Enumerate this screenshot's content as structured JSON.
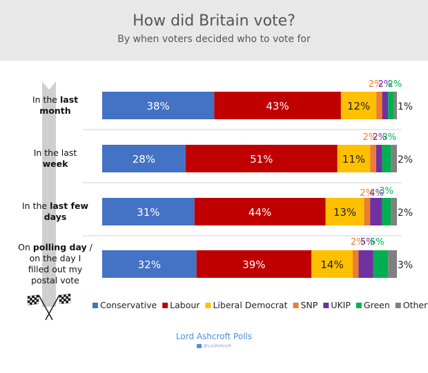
{
  "header": {
    "title": "How did Britain vote?",
    "subtitle": "By when voters decided who to vote for"
  },
  "footer": {
    "source": "Lord Ashcroft Polls",
    "handle": "@LordAshcroft"
  },
  "chart_data": {
    "type": "bar",
    "orientation": "horizontal",
    "stacked": true,
    "title": "How did Britain vote?",
    "subtitle": "By when voters decided who to vote for",
    "categories": [
      {
        "parts": [
          {
            "t": "In the ",
            "b": false
          },
          {
            "t": "last",
            "b": true
          },
          {
            "t": "\n",
            "b": false
          },
          {
            "t": "month",
            "b": true
          }
        ]
      },
      {
        "parts": [
          {
            "t": "In the last",
            "b": false
          },
          {
            "t": "\n",
            "b": false
          },
          {
            "t": "week",
            "b": true
          }
        ]
      },
      {
        "parts": [
          {
            "t": "In the ",
            "b": false
          },
          {
            "t": "last few",
            "b": true
          },
          {
            "t": "\n",
            "b": false
          },
          {
            "t": "days",
            "b": true
          }
        ]
      },
      {
        "parts": [
          {
            "t": "On ",
            "b": false
          },
          {
            "t": "polling day",
            "b": true
          },
          {
            "t": " /",
            "b": false
          },
          {
            "t": "\n",
            "b": false
          },
          {
            "t": "on the day I",
            "b": false
          },
          {
            "t": "\n",
            "b": false
          },
          {
            "t": "filled out my",
            "b": false
          },
          {
            "t": "\n",
            "b": false
          },
          {
            "t": "postal vote",
            "b": false
          }
        ]
      }
    ],
    "series": [
      {
        "name": "Conservative",
        "color": "#4472c4",
        "values": [
          38,
          28,
          31,
          32
        ]
      },
      {
        "name": "Labour",
        "color": "#c00000",
        "values": [
          43,
          51,
          44,
          39
        ]
      },
      {
        "name": "Liberal Democrat",
        "color": "#ffc000",
        "values": [
          12,
          11,
          13,
          14
        ]
      },
      {
        "name": "SNP",
        "color": "#ed7d31",
        "values": [
          2,
          2,
          2,
          2
        ]
      },
      {
        "name": "UKIP",
        "color": "#7030a0",
        "values": [
          2,
          2,
          4,
          5
        ]
      },
      {
        "name": "Green",
        "color": "#00b050",
        "values": [
          2,
          3,
          3,
          5
        ]
      },
      {
        "name": "Other",
        "color": "#808080",
        "values": [
          1,
          2,
          2,
          3
        ]
      }
    ],
    "data_labels": "percent",
    "legend": "bottom",
    "label_colors": {
      "inside": "#ffffff",
      "inside_on_yellow": "#222222",
      "outside": "#222222"
    }
  }
}
